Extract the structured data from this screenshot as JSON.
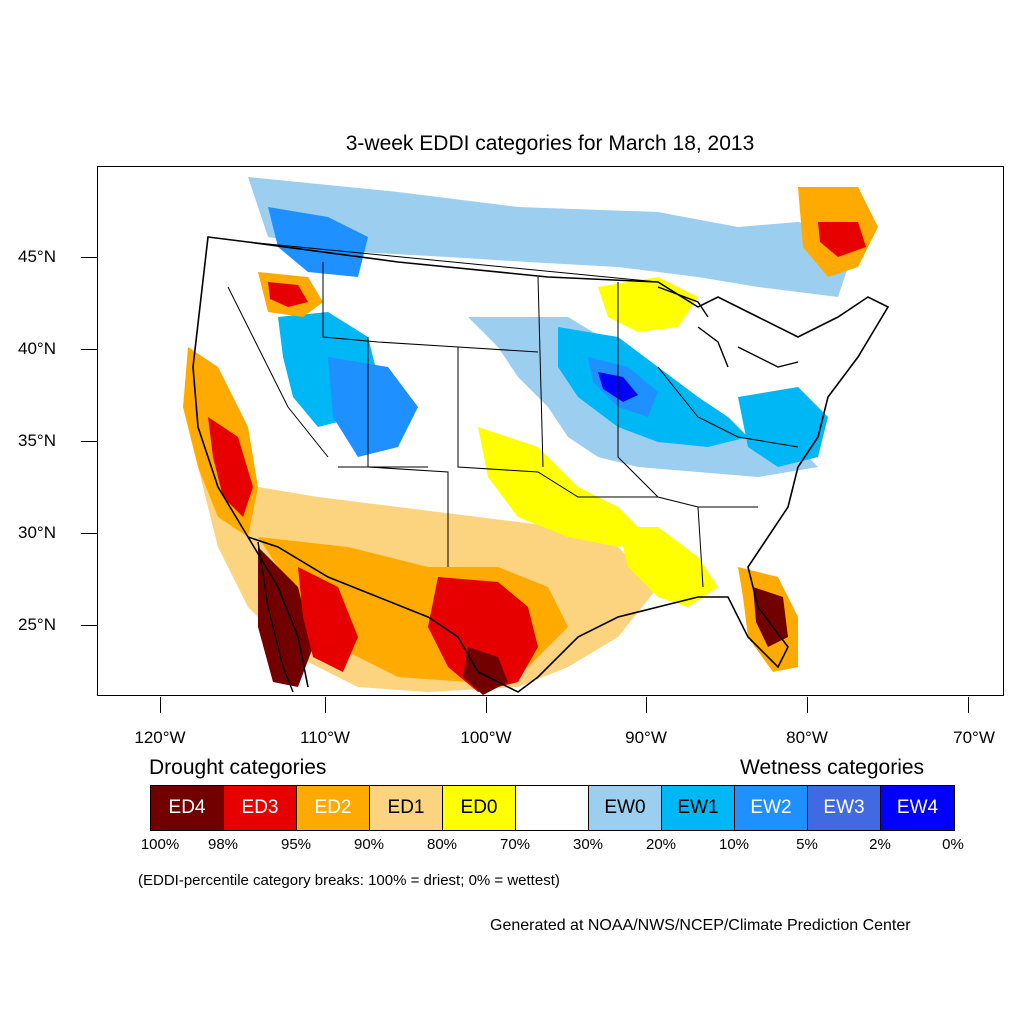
{
  "title": "3-week EDDI categories for March 18, 2013",
  "y_axis_ticks": [
    {
      "label": "45°N"
    },
    {
      "label": "40°N"
    },
    {
      "label": "35°N"
    },
    {
      "label": "30°N"
    },
    {
      "label": "25°N"
    }
  ],
  "x_axis_ticks": [
    {
      "label": "120°W"
    },
    {
      "label": "110°W"
    },
    {
      "label": "100°W"
    },
    {
      "label": "90°W"
    },
    {
      "label": "80°W"
    },
    {
      "label": "70°W"
    }
  ],
  "legend": {
    "drought_heading": "Drought categories",
    "wetness_heading": "Wetness categories",
    "categories": [
      {
        "label": "ED4",
        "color": "#730000",
        "text_color": "#ffffff"
      },
      {
        "label": "ED3",
        "color": "#e60000",
        "text_color": "#ffffff"
      },
      {
        "label": "ED2",
        "color": "#ffaa00",
        "text_color": "#ffffff"
      },
      {
        "label": "ED1",
        "color": "#fcd37f",
        "text_color": "#000000"
      },
      {
        "label": "ED0",
        "color": "#ffff00",
        "text_color": "#000000"
      },
      {
        "label": "",
        "color": "#ffffff",
        "text_color": "#000000"
      },
      {
        "label": "EW0",
        "color": "#9ccef0",
        "text_color": "#000000"
      },
      {
        "label": "EW1",
        "color": "#00b7f5",
        "text_color": "#000000"
      },
      {
        "label": "EW2",
        "color": "#1e90ff",
        "text_color": "#ffffff"
      },
      {
        "label": "EW3",
        "color": "#4169e1",
        "text_color": "#ffffff"
      },
      {
        "label": "EW4",
        "color": "#0000ff",
        "text_color": "#ffffff"
      }
    ],
    "percent_breaks": [
      "100%",
      "98%",
      "95%",
      "90%",
      "80%",
      "70%",
      "30%",
      "20%",
      "10%",
      "5%",
      "2%",
      "0%"
    ]
  },
  "note": "(EDDI-percentile category breaks: 100% = driest; 0% = wettest)",
  "credit": "Generated at NOAA/NWS/NCEP/Climate Prediction Center"
}
